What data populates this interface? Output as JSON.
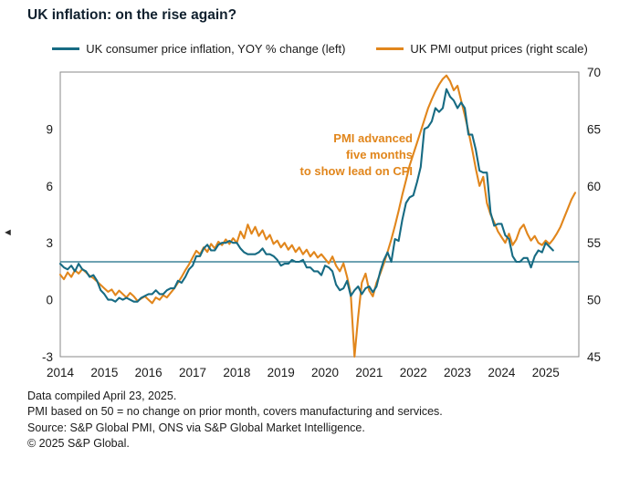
{
  "title": "UK inflation: on the rise again?",
  "legend": [
    {
      "label": "UK consumer price inflation, YOY % change (left)",
      "color": "#176b83"
    },
    {
      "label": "UK PMI output prices (right scale)",
      "color": "#e1861c"
    }
  ],
  "annotation": {
    "lines": [
      "PMI advanced",
      "five months",
      "to show lead on CPI"
    ],
    "color": "#e1861c"
  },
  "footnotes": [
    "Data compiled April 23, 2025.",
    "PMI based on 50 = no change on prior month, covers manufacturing and services.",
    "Source: S&P Global PMI, ONS via S&P Global Market Intelligence.",
    "© 2025 S&P Global."
  ],
  "collapse_arrow_glyph": "◄",
  "chart_data": {
    "type": "line",
    "x_unit": "month",
    "x_start": "2014-01",
    "x_tick_years": [
      2014,
      2015,
      2016,
      2017,
      2018,
      2019,
      2020,
      2021,
      2022,
      2023,
      2024,
      2025
    ],
    "left_axis": {
      "ticks": [
        9,
        6,
        3,
        0,
        -3
      ],
      "range": [
        -3,
        12
      ]
    },
    "right_axis": {
      "ticks": [
        70,
        65,
        60,
        55,
        50,
        45
      ],
      "range": [
        45,
        70
      ]
    },
    "reference_line_left": 2,
    "grid": false,
    "legend_position": "top",
    "series": [
      {
        "id": "cpi",
        "name": "UK consumer price inflation, YOY % change (left)",
        "axis": "left",
        "color": "#176b83",
        "start": "2014-01",
        "values": [
          1.9,
          1.7,
          1.6,
          1.8,
          1.5,
          1.9,
          1.6,
          1.5,
          1.2,
          1.3,
          1.0,
          0.5,
          0.3,
          0.0,
          0.0,
          -0.1,
          0.1,
          0.0,
          0.1,
          0.0,
          -0.1,
          -0.1,
          0.1,
          0.2,
          0.3,
          0.3,
          0.5,
          0.3,
          0.3,
          0.5,
          0.6,
          0.6,
          1.0,
          0.9,
          1.2,
          1.6,
          1.8,
          2.3,
          2.3,
          2.7,
          2.9,
          2.6,
          2.6,
          2.9,
          3.0,
          3.0,
          3.1,
          3.0,
          3.0,
          2.7,
          2.5,
          2.4,
          2.4,
          2.4,
          2.5,
          2.7,
          2.4,
          2.4,
          2.3,
          2.1,
          1.8,
          1.9,
          1.9,
          2.1,
          2.0,
          2.0,
          2.1,
          1.7,
          1.7,
          1.5,
          1.5,
          1.3,
          1.8,
          1.7,
          1.5,
          0.8,
          0.5,
          0.6,
          1.0,
          0.2,
          0.5,
          0.7,
          0.3,
          0.6,
          0.7,
          0.4,
          0.7,
          1.5,
          2.1,
          2.5,
          2.0,
          3.2,
          3.1,
          4.2,
          5.1,
          5.4,
          5.5,
          6.2,
          7.0,
          9.0,
          9.1,
          9.4,
          10.1,
          9.9,
          10.1,
          11.1,
          10.7,
          10.5,
          10.1,
          10.4,
          10.1,
          8.7,
          8.7,
          7.9,
          6.8,
          6.7,
          6.7,
          4.6,
          3.9,
          4.0,
          4.0,
          3.4,
          3.2,
          2.3,
          2.0,
          2.0,
          2.2,
          2.2,
          1.7,
          2.3,
          2.6,
          2.5,
          3.0,
          2.8,
          2.6
        ]
      },
      {
        "id": "pmi",
        "name": "UK PMI output prices (right scale)",
        "axis": "right",
        "color": "#e1861c",
        "start": "2014-01",
        "note": "advanced five months to show lead on CPI",
        "values": [
          52.2,
          51.8,
          52.4,
          52.0,
          52.6,
          52.3,
          52.7,
          52.4,
          52.1,
          51.9,
          51.6,
          51.3,
          51.0,
          50.7,
          50.9,
          50.4,
          50.8,
          50.5,
          50.2,
          50.6,
          50.3,
          49.9,
          50.1,
          50.3,
          50.0,
          49.7,
          50.2,
          50.0,
          50.4,
          50.2,
          50.6,
          51.0,
          51.5,
          52.0,
          52.6,
          53.1,
          53.7,
          54.3,
          54.0,
          54.6,
          54.2,
          54.9,
          54.5,
          55.1,
          54.8,
          55.3,
          54.9,
          55.4,
          55.0,
          56.0,
          55.4,
          56.6,
          55.8,
          56.4,
          55.6,
          56.1,
          55.3,
          55.7,
          54.9,
          55.2,
          54.6,
          55.0,
          54.4,
          54.8,
          54.2,
          54.6,
          54.0,
          54.4,
          53.8,
          54.2,
          53.7,
          54.0,
          53.6,
          53.2,
          53.8,
          53.0,
          52.5,
          53.2,
          52.0,
          50.5,
          45.0,
          48.5,
          51.5,
          52.3,
          50.8,
          50.3,
          51.5,
          52.3,
          53.2,
          54.2,
          55.3,
          56.5,
          57.8,
          59.2,
          60.5,
          61.8,
          62.8,
          63.8,
          64.8,
          65.8,
          66.8,
          67.6,
          68.3,
          68.9,
          69.4,
          69.7,
          69.2,
          68.4,
          68.8,
          67.5,
          66.2,
          64.8,
          63.2,
          61.5,
          60.0,
          60.8,
          58.5,
          57.5,
          56.8,
          56.0,
          55.5,
          55.0,
          55.8,
          54.8,
          55.3,
          56.2,
          56.6,
          55.8,
          55.2,
          55.6,
          55.0,
          54.8,
          55.2,
          54.9,
          55.3,
          55.8,
          56.4,
          57.2,
          58.0,
          58.8,
          59.4
        ]
      }
    ]
  }
}
